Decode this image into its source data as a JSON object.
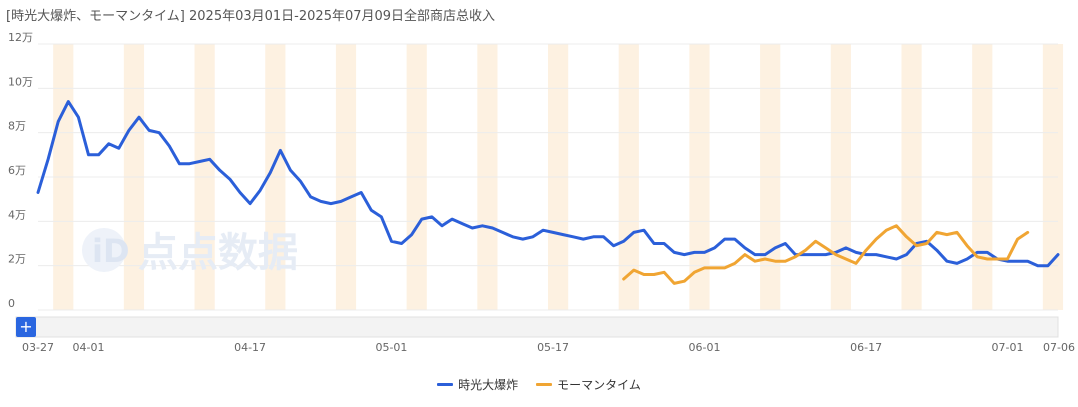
{
  "title": "[時光大爆炸、モーマンタイム] 2025年03月01日-2025年07月09日全部商店总收入",
  "watermark": "点点数据",
  "zoom_label": "+",
  "chart_data": {
    "type": "line",
    "x_range": [
      "2025-03-27",
      "2025-07-06"
    ],
    "y_range": [
      0,
      120000
    ],
    "y_ticks": [
      {
        "value": 0,
        "label": "0"
      },
      {
        "value": 20000,
        "label": "2万"
      },
      {
        "value": 40000,
        "label": "4万"
      },
      {
        "value": 60000,
        "label": "6万"
      },
      {
        "value": 80000,
        "label": "8万"
      },
      {
        "value": 100000,
        "label": "10万"
      },
      {
        "value": 120000,
        "label": "12万"
      }
    ],
    "x_ticks": [
      {
        "date": "2025-03-27",
        "label": "03-27"
      },
      {
        "date": "2025-04-01",
        "label": "04-01"
      },
      {
        "date": "2025-04-17",
        "label": "04-17"
      },
      {
        "date": "2025-05-01",
        "label": "05-01"
      },
      {
        "date": "2025-05-17",
        "label": "05-17"
      },
      {
        "date": "2025-06-01",
        "label": "06-01"
      },
      {
        "date": "2025-06-17",
        "label": "06-17"
      },
      {
        "date": "2025-07-01",
        "label": "07-01"
      },
      {
        "date": "2025-07-06",
        "label": "07-06"
      }
    ],
    "weekend_bands": [
      "2025-03-29",
      "2025-04-05",
      "2025-04-12",
      "2025-04-19",
      "2025-04-26",
      "2025-05-03",
      "2025-05-10",
      "2025-05-17",
      "2025-05-24",
      "2025-05-31",
      "2025-06-07",
      "2025-06-14",
      "2025-06-21",
      "2025-06-28",
      "2025-07-05"
    ],
    "grid": true,
    "legend_position": "bottom-center",
    "series": [
      {
        "name": "時光大爆炸",
        "color": "#2b5fd9",
        "start": "2025-03-27",
        "values": [
          53000,
          68000,
          85000,
          94000,
          87000,
          70000,
          70000,
          75000,
          73000,
          81000,
          87000,
          81000,
          80000,
          74000,
          66000,
          66000,
          67000,
          68000,
          63000,
          59000,
          53000,
          48000,
          54000,
          62000,
          72000,
          63000,
          58000,
          51000,
          49000,
          48000,
          49000,
          51000,
          53000,
          45000,
          42000,
          31000,
          30000,
          34000,
          41000,
          42000,
          38000,
          41000,
          39000,
          37000,
          38000,
          37000,
          35000,
          33000,
          32000,
          33000,
          36000,
          35000,
          34000,
          33000,
          32000,
          33000,
          33000,
          29000,
          31000,
          35000,
          36000,
          30000,
          30000,
          26000,
          25000,
          26000,
          26000,
          28000,
          32000,
          32000,
          28000,
          25000,
          25000,
          28000,
          30000,
          25000,
          25000,
          25000,
          25000,
          26000,
          28000,
          26000,
          25000,
          25000,
          24000,
          23000,
          25000,
          30000,
          31000,
          27000,
          22000,
          21000,
          23000,
          26000,
          26000,
          23000,
          22000,
          22000,
          22000,
          20000,
          20000,
          25000
        ]
      },
      {
        "name": "モーマンタイム",
        "color": "#f0a533",
        "start": "2025-05-24",
        "values": [
          14000,
          18000,
          16000,
          16000,
          17000,
          12000,
          13000,
          17000,
          19000,
          19000,
          19000,
          21000,
          25000,
          22000,
          23000,
          22000,
          22000,
          24000,
          27000,
          31000,
          28000,
          25000,
          23000,
          21000,
          27000,
          32000,
          36000,
          38000,
          33000,
          29000,
          30000,
          35000,
          34000,
          35000,
          29000,
          24000,
          23000,
          23000,
          23000,
          32000,
          35000
        ]
      }
    ]
  }
}
